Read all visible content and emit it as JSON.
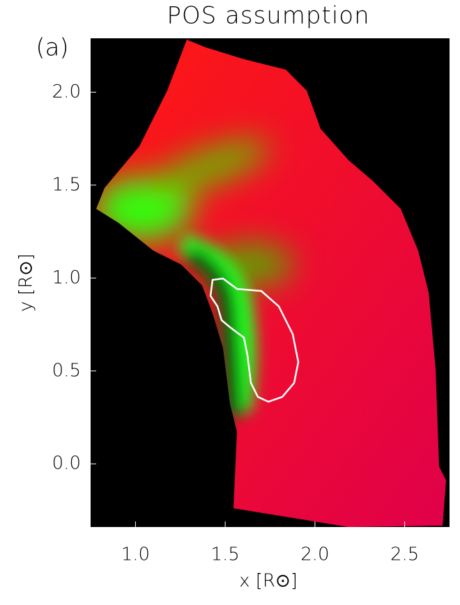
{
  "chart_data": {
    "type": "image",
    "title": "POS assumption",
    "panel_label": "(a)",
    "x_label": "x [R⊙]",
    "y_label": "y [R⊙]",
    "xlim": [
      0.75,
      2.75
    ],
    "ylim": [
      -0.34,
      2.29
    ],
    "xticks": [
      {
        "value": 1.0,
        "label": "1.0"
      },
      1.5,
      {
        "value": 2.0,
        "label": "2.0"
      },
      2.5
    ],
    "yticks": [
      {
        "value": 0.0,
        "label": "0.0"
      },
      0.5,
      {
        "value": 1.0,
        "label": "1.0"
      },
      1.5,
      {
        "value": 2.0,
        "label": "2.0"
      }
    ],
    "background": "#000000"
  }
}
